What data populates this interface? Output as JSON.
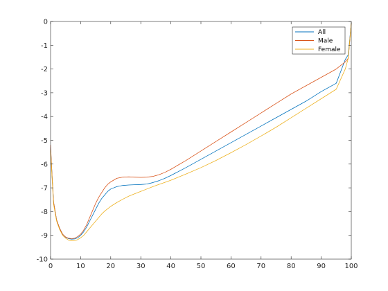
{
  "chart_data": {
    "type": "line",
    "title": "",
    "xlabel": "",
    "ylabel": "",
    "xlim": [
      0,
      100
    ],
    "ylim": [
      -10,
      0
    ],
    "xticks": [
      0,
      10,
      20,
      30,
      40,
      50,
      60,
      70,
      80,
      90,
      100
    ],
    "yticks": [
      0,
      -1,
      -2,
      -3,
      -4,
      -5,
      -6,
      -7,
      -8,
      -9,
      -10
    ],
    "grid": false,
    "legend_position": "top-right",
    "series": [
      {
        "name": "All",
        "color": "#0072BD",
        "x": [
          0,
          0.5,
          1,
          2,
          3,
          4,
          5,
          6,
          7,
          8,
          9,
          10,
          11,
          12,
          13,
          14,
          15,
          16,
          17,
          18,
          19,
          20,
          22,
          24,
          26,
          28,
          30,
          32,
          34,
          36,
          38,
          40,
          45,
          50,
          55,
          60,
          65,
          70,
          75,
          80,
          85,
          90,
          95,
          98,
          99,
          100
        ],
        "y": [
          -5.3,
          -6.5,
          -7.6,
          -8.35,
          -8.7,
          -8.95,
          -9.08,
          -9.14,
          -9.16,
          -9.15,
          -9.1,
          -9.0,
          -8.85,
          -8.65,
          -8.4,
          -8.15,
          -7.9,
          -7.65,
          -7.45,
          -7.3,
          -7.15,
          -7.05,
          -6.95,
          -6.9,
          -6.88,
          -6.87,
          -6.86,
          -6.84,
          -6.78,
          -6.7,
          -6.6,
          -6.48,
          -6.15,
          -5.8,
          -5.45,
          -5.1,
          -4.75,
          -4.4,
          -4.05,
          -3.7,
          -3.35,
          -2.95,
          -2.6,
          -1.6,
          -1.4,
          -0.05
        ]
      },
      {
        "name": "Male",
        "color": "#D95319",
        "x": [
          0,
          0.5,
          1,
          2,
          3,
          4,
          5,
          6,
          7,
          8,
          9,
          10,
          11,
          12,
          13,
          14,
          15,
          16,
          17,
          18,
          19,
          20,
          22,
          24,
          26,
          28,
          30,
          32,
          34,
          36,
          38,
          40,
          45,
          50,
          55,
          60,
          65,
          70,
          75,
          80,
          85,
          90,
          95,
          98,
          99,
          100
        ],
        "y": [
          -5.2,
          -6.5,
          -7.6,
          -8.35,
          -8.7,
          -8.95,
          -9.07,
          -9.12,
          -9.14,
          -9.12,
          -9.05,
          -8.95,
          -8.78,
          -8.55,
          -8.25,
          -7.95,
          -7.65,
          -7.4,
          -7.2,
          -7.0,
          -6.85,
          -6.75,
          -6.6,
          -6.55,
          -6.54,
          -6.55,
          -6.56,
          -6.55,
          -6.52,
          -6.45,
          -6.35,
          -6.22,
          -5.85,
          -5.45,
          -5.05,
          -4.65,
          -4.25,
          -3.85,
          -3.45,
          -3.05,
          -2.7,
          -2.35,
          -2.0,
          -1.7,
          -1.55,
          -0.05
        ]
      },
      {
        "name": "Female",
        "color": "#EDB120",
        "x": [
          0,
          0.5,
          1,
          2,
          3,
          4,
          5,
          6,
          7,
          8,
          9,
          10,
          11,
          12,
          13,
          14,
          15,
          16,
          17,
          18,
          19,
          20,
          22,
          24,
          26,
          28,
          30,
          32,
          34,
          36,
          38,
          40,
          45,
          50,
          55,
          60,
          65,
          70,
          75,
          80,
          85,
          90,
          95,
          98,
          99,
          100
        ],
        "y": [
          -5.4,
          -6.6,
          -7.7,
          -8.4,
          -8.75,
          -9.0,
          -9.12,
          -9.2,
          -9.23,
          -9.22,
          -9.18,
          -9.1,
          -9.0,
          -8.85,
          -8.7,
          -8.55,
          -8.4,
          -8.25,
          -8.1,
          -7.98,
          -7.88,
          -7.78,
          -7.62,
          -7.48,
          -7.35,
          -7.25,
          -7.15,
          -7.05,
          -6.95,
          -6.86,
          -6.77,
          -6.68,
          -6.42,
          -6.15,
          -5.85,
          -5.52,
          -5.18,
          -4.82,
          -4.45,
          -4.05,
          -3.65,
          -3.25,
          -2.85,
          -2.0,
          -1.55,
          -0.05
        ]
      }
    ]
  }
}
